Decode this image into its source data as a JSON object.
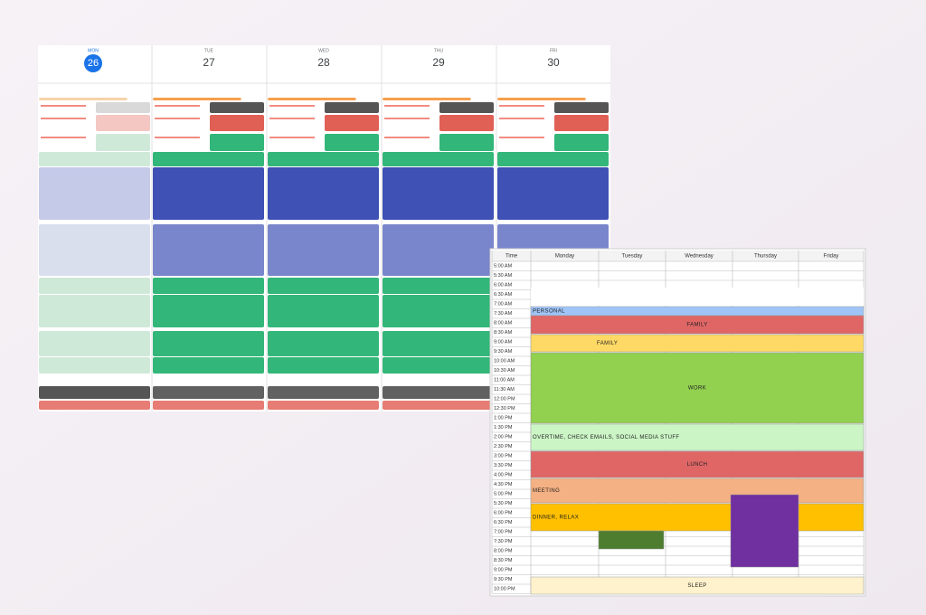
{
  "calendar": {
    "days": [
      "MON",
      "TUE",
      "WED",
      "THU",
      "FRI"
    ],
    "dates": [
      "26",
      "27",
      "28",
      "29",
      "30"
    ]
  },
  "sheet": {
    "headers": [
      "Time",
      "Monday",
      "Tuesday",
      "Wednesday",
      "Thursday",
      "Friday"
    ],
    "times": [
      "5:00 AM",
      "5:30 AM",
      "6:00 AM",
      "6:30 AM",
      "7:00 AM",
      "7:30 AM",
      "8:00 AM",
      "8:30 AM",
      "9:00 AM",
      "9:30 AM",
      "10:00 AM",
      "10:30 AM",
      "11:00 AM",
      "11:30 AM",
      "12:00 PM",
      "12:30 PM",
      "1:00 PM",
      "1:30 PM",
      "2:00 PM",
      "2:30 PM",
      "3:00 PM",
      "3:30 PM",
      "4:00 PM",
      "4:30 PM",
      "5:00 PM",
      "5:30 PM",
      "6:00 PM",
      "6:30 PM",
      "7:00 PM",
      "7:30 PM",
      "8:00 PM",
      "8:30 PM",
      "9:00 PM",
      "9:30 PM",
      "10:00 PM"
    ],
    "blocks": [
      "PERSONAL",
      "FAMILY",
      "FAMILY",
      "WORK",
      "OVERTIME, CHECK EMAILS, SOCIAL MEDIA STUFF",
      "LUNCH",
      "MEETING",
      "DINNER, RELAX",
      "SLEEP"
    ]
  }
}
